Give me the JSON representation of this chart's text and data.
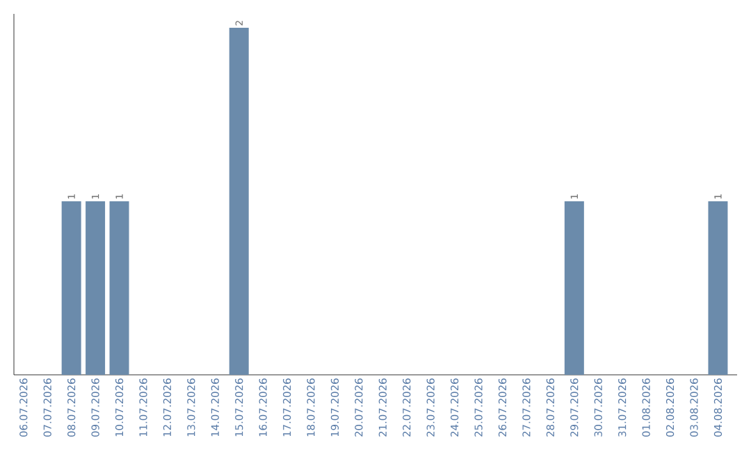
{
  "chart_data": {
    "type": "bar",
    "categories": [
      "06.07.2026",
      "07.07.2026",
      "08.07.2026",
      "09.07.2026",
      "10.07.2026",
      "11.07.2026",
      "12.07.2026",
      "13.07.2026",
      "14.07.2026",
      "15.07.2026",
      "16.07.2026",
      "17.07.2026",
      "18.07.2026",
      "19.07.2026",
      "20.07.2026",
      "21.07.2026",
      "22.07.2026",
      "23.07.2026",
      "24.07.2026",
      "25.07.2026",
      "26.07.2026",
      "27.07.2026",
      "28.07.2026",
      "29.07.2026",
      "30.07.2026",
      "31.07.2026",
      "01.08.2026",
      "02.08.2026",
      "03.08.2026",
      "04.08.2026"
    ],
    "values": [
      0,
      0,
      1,
      1,
      1,
      0,
      0,
      0,
      0,
      2,
      0,
      0,
      0,
      0,
      0,
      0,
      0,
      0,
      0,
      0,
      0,
      0,
      0,
      1,
      0,
      0,
      0,
      0,
      0,
      1
    ],
    "value_labels": [
      null,
      null,
      "1",
      "1",
      "1",
      null,
      null,
      null,
      null,
      "2",
      null,
      null,
      null,
      null,
      null,
      null,
      null,
      null,
      null,
      null,
      null,
      null,
      null,
      "1",
      null,
      null,
      null,
      null,
      null,
      "1"
    ],
    "color": "#6b8bab",
    "ylim": [
      0,
      2.08
    ]
  }
}
